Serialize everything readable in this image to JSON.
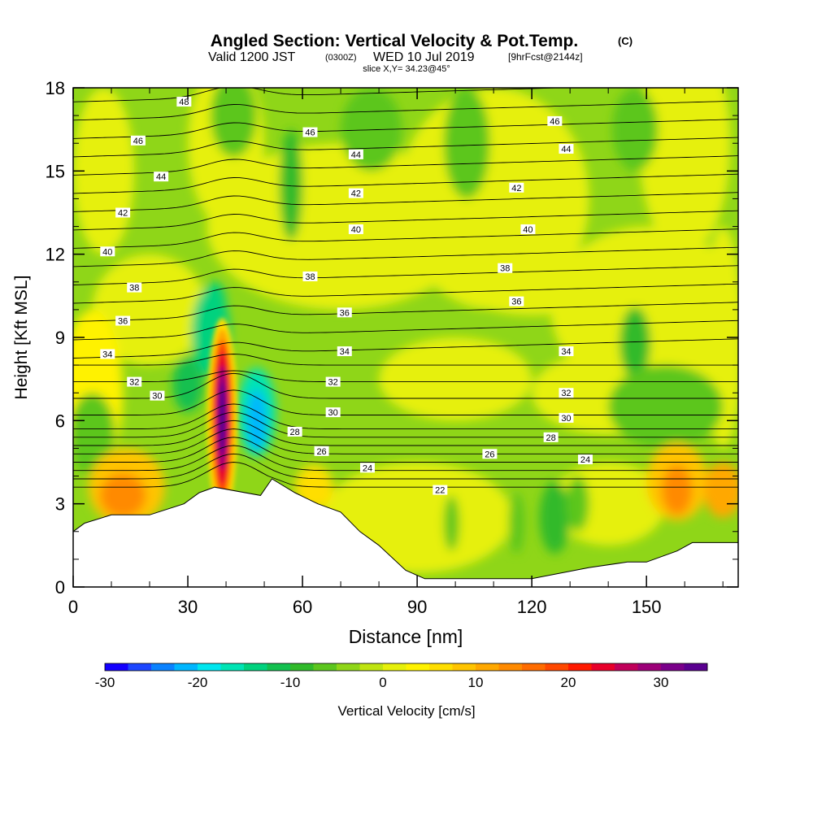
{
  "chart_data": {
    "type": "heatmap",
    "title": "Angled Section: Vertical Velocity & Pot.Temp.",
    "title_units": "(C)",
    "subtitle_prefix": "Valid 1200 JST",
    "subtitle_utc": "(0300Z)",
    "subtitle_date": "WED 10 Jul 2019",
    "subtitle_fcst": "[9hrFcst@2144z]",
    "slice_label": "slice X,Y= 34.23@45°",
    "xlabel": "Distance [nm]",
    "ylabel": "Height [Kft MSL]",
    "xlim": [
      0,
      174
    ],
    "ylim": [
      0,
      18
    ],
    "x_ticks": [
      "0",
      "30",
      "60",
      "90",
      "120",
      "150"
    ],
    "x_tick_values": [
      0,
      30,
      60,
      90,
      120,
      150
    ],
    "y_ticks": [
      "0",
      "3",
      "6",
      "9",
      "12",
      "15",
      "18"
    ],
    "y_tick_values": [
      0,
      3,
      6,
      9,
      12,
      15,
      18
    ],
    "grid": false,
    "terrain_kft": [
      [
        0,
        2.0
      ],
      [
        3,
        2.3
      ],
      [
        10,
        2.6
      ],
      [
        20,
        2.6
      ],
      [
        29,
        3.0
      ],
      [
        33,
        3.4
      ],
      [
        37,
        3.6
      ],
      [
        49,
        3.3
      ],
      [
        52,
        3.9
      ],
      [
        58,
        3.4
      ],
      [
        64,
        3.0
      ],
      [
        70,
        2.7
      ],
      [
        75,
        2.0
      ],
      [
        80,
        1.5
      ],
      [
        87,
        0.6
      ],
      [
        92,
        0.3
      ],
      [
        120,
        0.3
      ],
      [
        135,
        0.7
      ],
      [
        145,
        0.9
      ],
      [
        150,
        0.9
      ],
      [
        158,
        1.3
      ],
      [
        162,
        1.6
      ],
      [
        174,
        1.6
      ]
    ],
    "theta_contour_labels": [
      {
        "text": "48",
        "x": 29,
        "y": 17.5
      },
      {
        "text": "46",
        "x": 17,
        "y": 16.1
      },
      {
        "text": "46",
        "x": 62,
        "y": 16.4
      },
      {
        "text": "46",
        "x": 126,
        "y": 16.8
      },
      {
        "text": "44",
        "x": 23,
        "y": 14.8
      },
      {
        "text": "44",
        "x": 74,
        "y": 15.6
      },
      {
        "text": "44",
        "x": 129,
        "y": 15.8
      },
      {
        "text": "42",
        "x": 13,
        "y": 13.5
      },
      {
        "text": "42",
        "x": 74,
        "y": 14.2
      },
      {
        "text": "42",
        "x": 116,
        "y": 14.4
      },
      {
        "text": "40",
        "x": 9,
        "y": 12.1
      },
      {
        "text": "40",
        "x": 74,
        "y": 12.9
      },
      {
        "text": "40",
        "x": 119,
        "y": 12.9
      },
      {
        "text": "38",
        "x": 16,
        "y": 10.8
      },
      {
        "text": "38",
        "x": 62,
        "y": 11.2
      },
      {
        "text": "38",
        "x": 113,
        "y": 11.5
      },
      {
        "text": "36",
        "x": 13,
        "y": 9.6
      },
      {
        "text": "36",
        "x": 71,
        "y": 9.9
      },
      {
        "text": "36",
        "x": 116,
        "y": 10.3
      },
      {
        "text": "34",
        "x": 9,
        "y": 8.4
      },
      {
        "text": "34",
        "x": 71,
        "y": 8.5
      },
      {
        "text": "34",
        "x": 129,
        "y": 8.5
      },
      {
        "text": "32",
        "x": 16,
        "y": 7.4
      },
      {
        "text": "32",
        "x": 68,
        "y": 7.4
      },
      {
        "text": "32",
        "x": 129,
        "y": 7.0
      },
      {
        "text": "30",
        "x": 22,
        "y": 6.9
      },
      {
        "text": "30",
        "x": 68,
        "y": 6.3
      },
      {
        "text": "30",
        "x": 129,
        "y": 6.1
      },
      {
        "text": "28",
        "x": 58,
        "y": 5.6
      },
      {
        "text": "28",
        "x": 125,
        "y": 5.4
      },
      {
        "text": "26",
        "x": 65,
        "y": 4.9
      },
      {
        "text": "26",
        "x": 109,
        "y": 4.8
      },
      {
        "text": "24",
        "x": 77,
        "y": 4.3
      },
      {
        "text": "24",
        "x": 134,
        "y": 4.6
      },
      {
        "text": "22",
        "x": 96,
        "y": 3.5
      }
    ],
    "theta_contour_levels": [
      22,
      23,
      24,
      25,
      26,
      27,
      28,
      29,
      30,
      31,
      32,
      33,
      34,
      35,
      36,
      37,
      38,
      39,
      40,
      41,
      42,
      43,
      44,
      45,
      46,
      47,
      48
    ],
    "colorbar": {
      "label": "Vertical Velocity [cm/s]",
      "tick_labels": [
        "-30",
        "-20",
        "-10",
        "0",
        "10",
        "20",
        "30"
      ],
      "tick_values": [
        -30,
        -20,
        -10,
        0,
        10,
        20,
        30
      ],
      "min": -30,
      "max": 35,
      "step": 2.5,
      "colors": [
        "#1400ff",
        "#1d46ff",
        "#0a82ff",
        "#00b6ff",
        "#00e6ef",
        "#00e4b4",
        "#00d27e",
        "#12c04f",
        "#30ba2a",
        "#5cc61e",
        "#8fd618",
        "#bfe410",
        "#e6f00a",
        "#fff200",
        "#ffde00",
        "#ffc400",
        "#ffa800",
        "#ff8a00",
        "#ff6c00",
        "#ff4800",
        "#ff1a00",
        "#e8002a",
        "#c0005a",
        "#9c0078",
        "#7a008a",
        "#5a0090"
      ]
    },
    "velocity_features": [
      {
        "kind": "updraft_core",
        "x": 39,
        "y": 6.0,
        "value_max": 35
      },
      {
        "kind": "downdraft",
        "x": 48,
        "y": 6.3,
        "value_min": -22
      },
      {
        "kind": "downdraft",
        "x": 35,
        "y": 9.5,
        "value_min": -12
      },
      {
        "kind": "updraft",
        "x": 11,
        "y": 3.8,
        "value_max": 12
      },
      {
        "kind": "updraft",
        "x": 158,
        "y": 3.6,
        "value_max": 12
      },
      {
        "kind": "downdraft",
        "x": 126,
        "y": 2.5,
        "value_min": -10
      }
    ]
  }
}
